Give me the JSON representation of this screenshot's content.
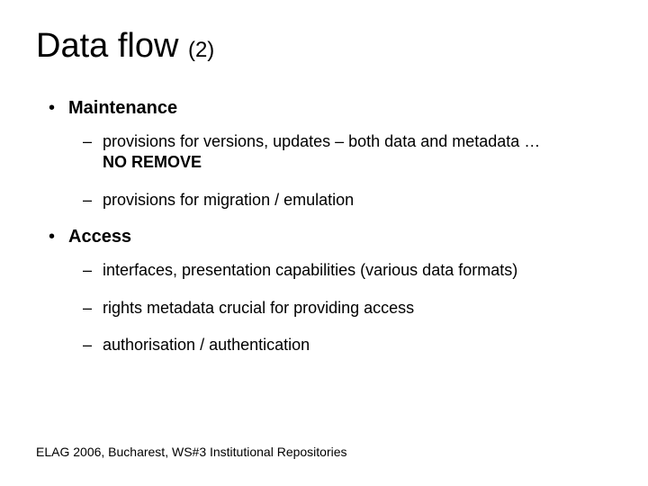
{
  "title": {
    "main": "Data flow",
    "suffix": "(2)"
  },
  "sections": [
    {
      "label": "Maintenance",
      "items": [
        {
          "pre": "provisions for versions, updates – both data and metadata … ",
          "bold": "NO REMOVE"
        },
        {
          "pre": "provisions for migration / emulation"
        }
      ]
    },
    {
      "label": "Access",
      "items": [
        {
          "pre": "interfaces, presentation capabilities (various data formats)"
        },
        {
          "pre": "rights metadata crucial for providing access"
        },
        {
          "pre": "authorisation / authentication"
        }
      ]
    }
  ],
  "footer": "ELAG 2006, Bucharest, WS#3  Institutional Repositories",
  "colors": {
    "background": "#ffffff",
    "text": "#000000"
  },
  "typography": {
    "title_fontsize": 38,
    "suffix_fontsize": 24,
    "bullet_fontsize": 20,
    "sub_fontsize": 18,
    "footer_fontsize": 14
  }
}
